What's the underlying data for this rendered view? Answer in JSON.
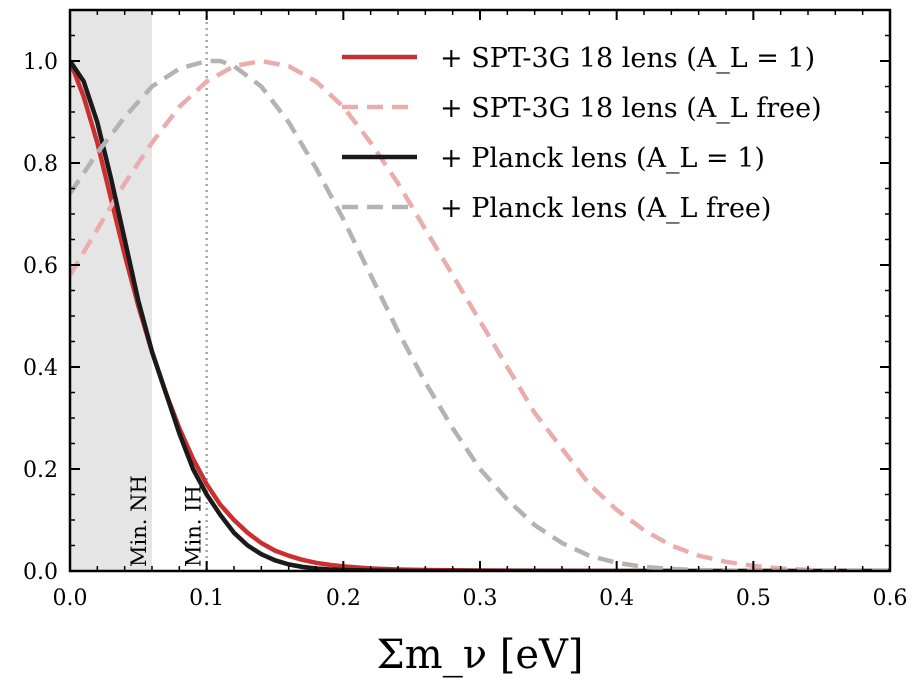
{
  "chart_data": {
    "type": "line",
    "title": "",
    "xlabel": "Σm_ν [eV]",
    "ylabel": "",
    "xlim": [
      0.0,
      0.6
    ],
    "ylim": [
      0.0,
      1.1
    ],
    "x_ticks": [
      "0.0",
      "0.1",
      "0.2",
      "0.3",
      "0.4",
      "0.5",
      "0.6"
    ],
    "y_ticks": [
      "0.0",
      "0.2",
      "0.4",
      "0.6",
      "0.8",
      "1.0"
    ],
    "legend_position": "top-right",
    "grid": false,
    "series": [
      {
        "name": "+ SPT-3G 18 lens (A_L = 1)",
        "color": "#cc2f2f",
        "style": "solid",
        "x": [
          0.0,
          0.01,
          0.02,
          0.03,
          0.04,
          0.05,
          0.06,
          0.07,
          0.08,
          0.09,
          0.1,
          0.11,
          0.12,
          0.13,
          0.14,
          0.15,
          0.16,
          0.17,
          0.18,
          0.19,
          0.2,
          0.22,
          0.24,
          0.26,
          0.3,
          0.4,
          0.6
        ],
        "y": [
          1.0,
          0.93,
          0.84,
          0.73,
          0.62,
          0.52,
          0.43,
          0.35,
          0.28,
          0.22,
          0.17,
          0.13,
          0.1,
          0.075,
          0.055,
          0.04,
          0.03,
          0.022,
          0.016,
          0.012,
          0.009,
          0.005,
          0.003,
          0.002,
          0.001,
          0.0,
          0.0
        ]
      },
      {
        "name": "+ SPT-3G 18 lens (A_L free)",
        "color": "#eaadad",
        "style": "dashed",
        "x": [
          0.0,
          0.02,
          0.04,
          0.06,
          0.08,
          0.1,
          0.12,
          0.14,
          0.16,
          0.18,
          0.2,
          0.22,
          0.24,
          0.26,
          0.28,
          0.3,
          0.32,
          0.34,
          0.36,
          0.38,
          0.4,
          0.42,
          0.44,
          0.46,
          0.48,
          0.5,
          0.52,
          0.55,
          0.6
        ],
        "y": [
          0.58,
          0.67,
          0.76,
          0.84,
          0.91,
          0.96,
          0.99,
          1.0,
          0.99,
          0.96,
          0.91,
          0.84,
          0.76,
          0.67,
          0.58,
          0.49,
          0.4,
          0.31,
          0.24,
          0.17,
          0.12,
          0.08,
          0.05,
          0.03,
          0.018,
          0.01,
          0.005,
          0.001,
          0.0
        ]
      },
      {
        "name": "+ Planck lens (A_L = 1)",
        "color": "#1a1a1a",
        "style": "solid",
        "x": [
          0.0,
          0.01,
          0.02,
          0.03,
          0.04,
          0.05,
          0.06,
          0.07,
          0.08,
          0.09,
          0.1,
          0.11,
          0.12,
          0.13,
          0.14,
          0.15,
          0.16,
          0.17,
          0.18,
          0.19,
          0.2,
          0.22,
          0.25,
          0.3,
          0.4,
          0.6
        ],
        "y": [
          1.0,
          0.96,
          0.88,
          0.77,
          0.65,
          0.53,
          0.43,
          0.35,
          0.27,
          0.2,
          0.15,
          0.11,
          0.075,
          0.05,
          0.033,
          0.021,
          0.013,
          0.008,
          0.005,
          0.003,
          0.002,
          0.001,
          0.0,
          0.0,
          0.0,
          0.0
        ]
      },
      {
        "name": "+ Planck lens (A_L free)",
        "color": "#b3b3b3",
        "style": "dashed",
        "x": [
          0.0,
          0.02,
          0.04,
          0.06,
          0.08,
          0.1,
          0.11,
          0.12,
          0.14,
          0.16,
          0.18,
          0.2,
          0.22,
          0.24,
          0.26,
          0.28,
          0.3,
          0.32,
          0.34,
          0.36,
          0.38,
          0.4,
          0.42,
          0.44,
          0.46,
          0.5,
          0.6
        ],
        "y": [
          0.74,
          0.82,
          0.89,
          0.95,
          0.985,
          1.0,
          1.0,
          0.99,
          0.95,
          0.88,
          0.79,
          0.69,
          0.58,
          0.47,
          0.37,
          0.28,
          0.2,
          0.14,
          0.09,
          0.055,
          0.03,
          0.016,
          0.008,
          0.004,
          0.002,
          0.0,
          0.0
        ]
      }
    ],
    "shaded_region": {
      "x": [
        0.0,
        0.06
      ],
      "color": "#e5e5e5"
    },
    "vline": {
      "x": 0.1,
      "color": "#a6a6a6",
      "style": "dotted"
    },
    "annotations": [
      {
        "text": "Min. NH",
        "x": 0.06
      },
      {
        "text": "Min. IH",
        "x": 0.1
      }
    ]
  }
}
